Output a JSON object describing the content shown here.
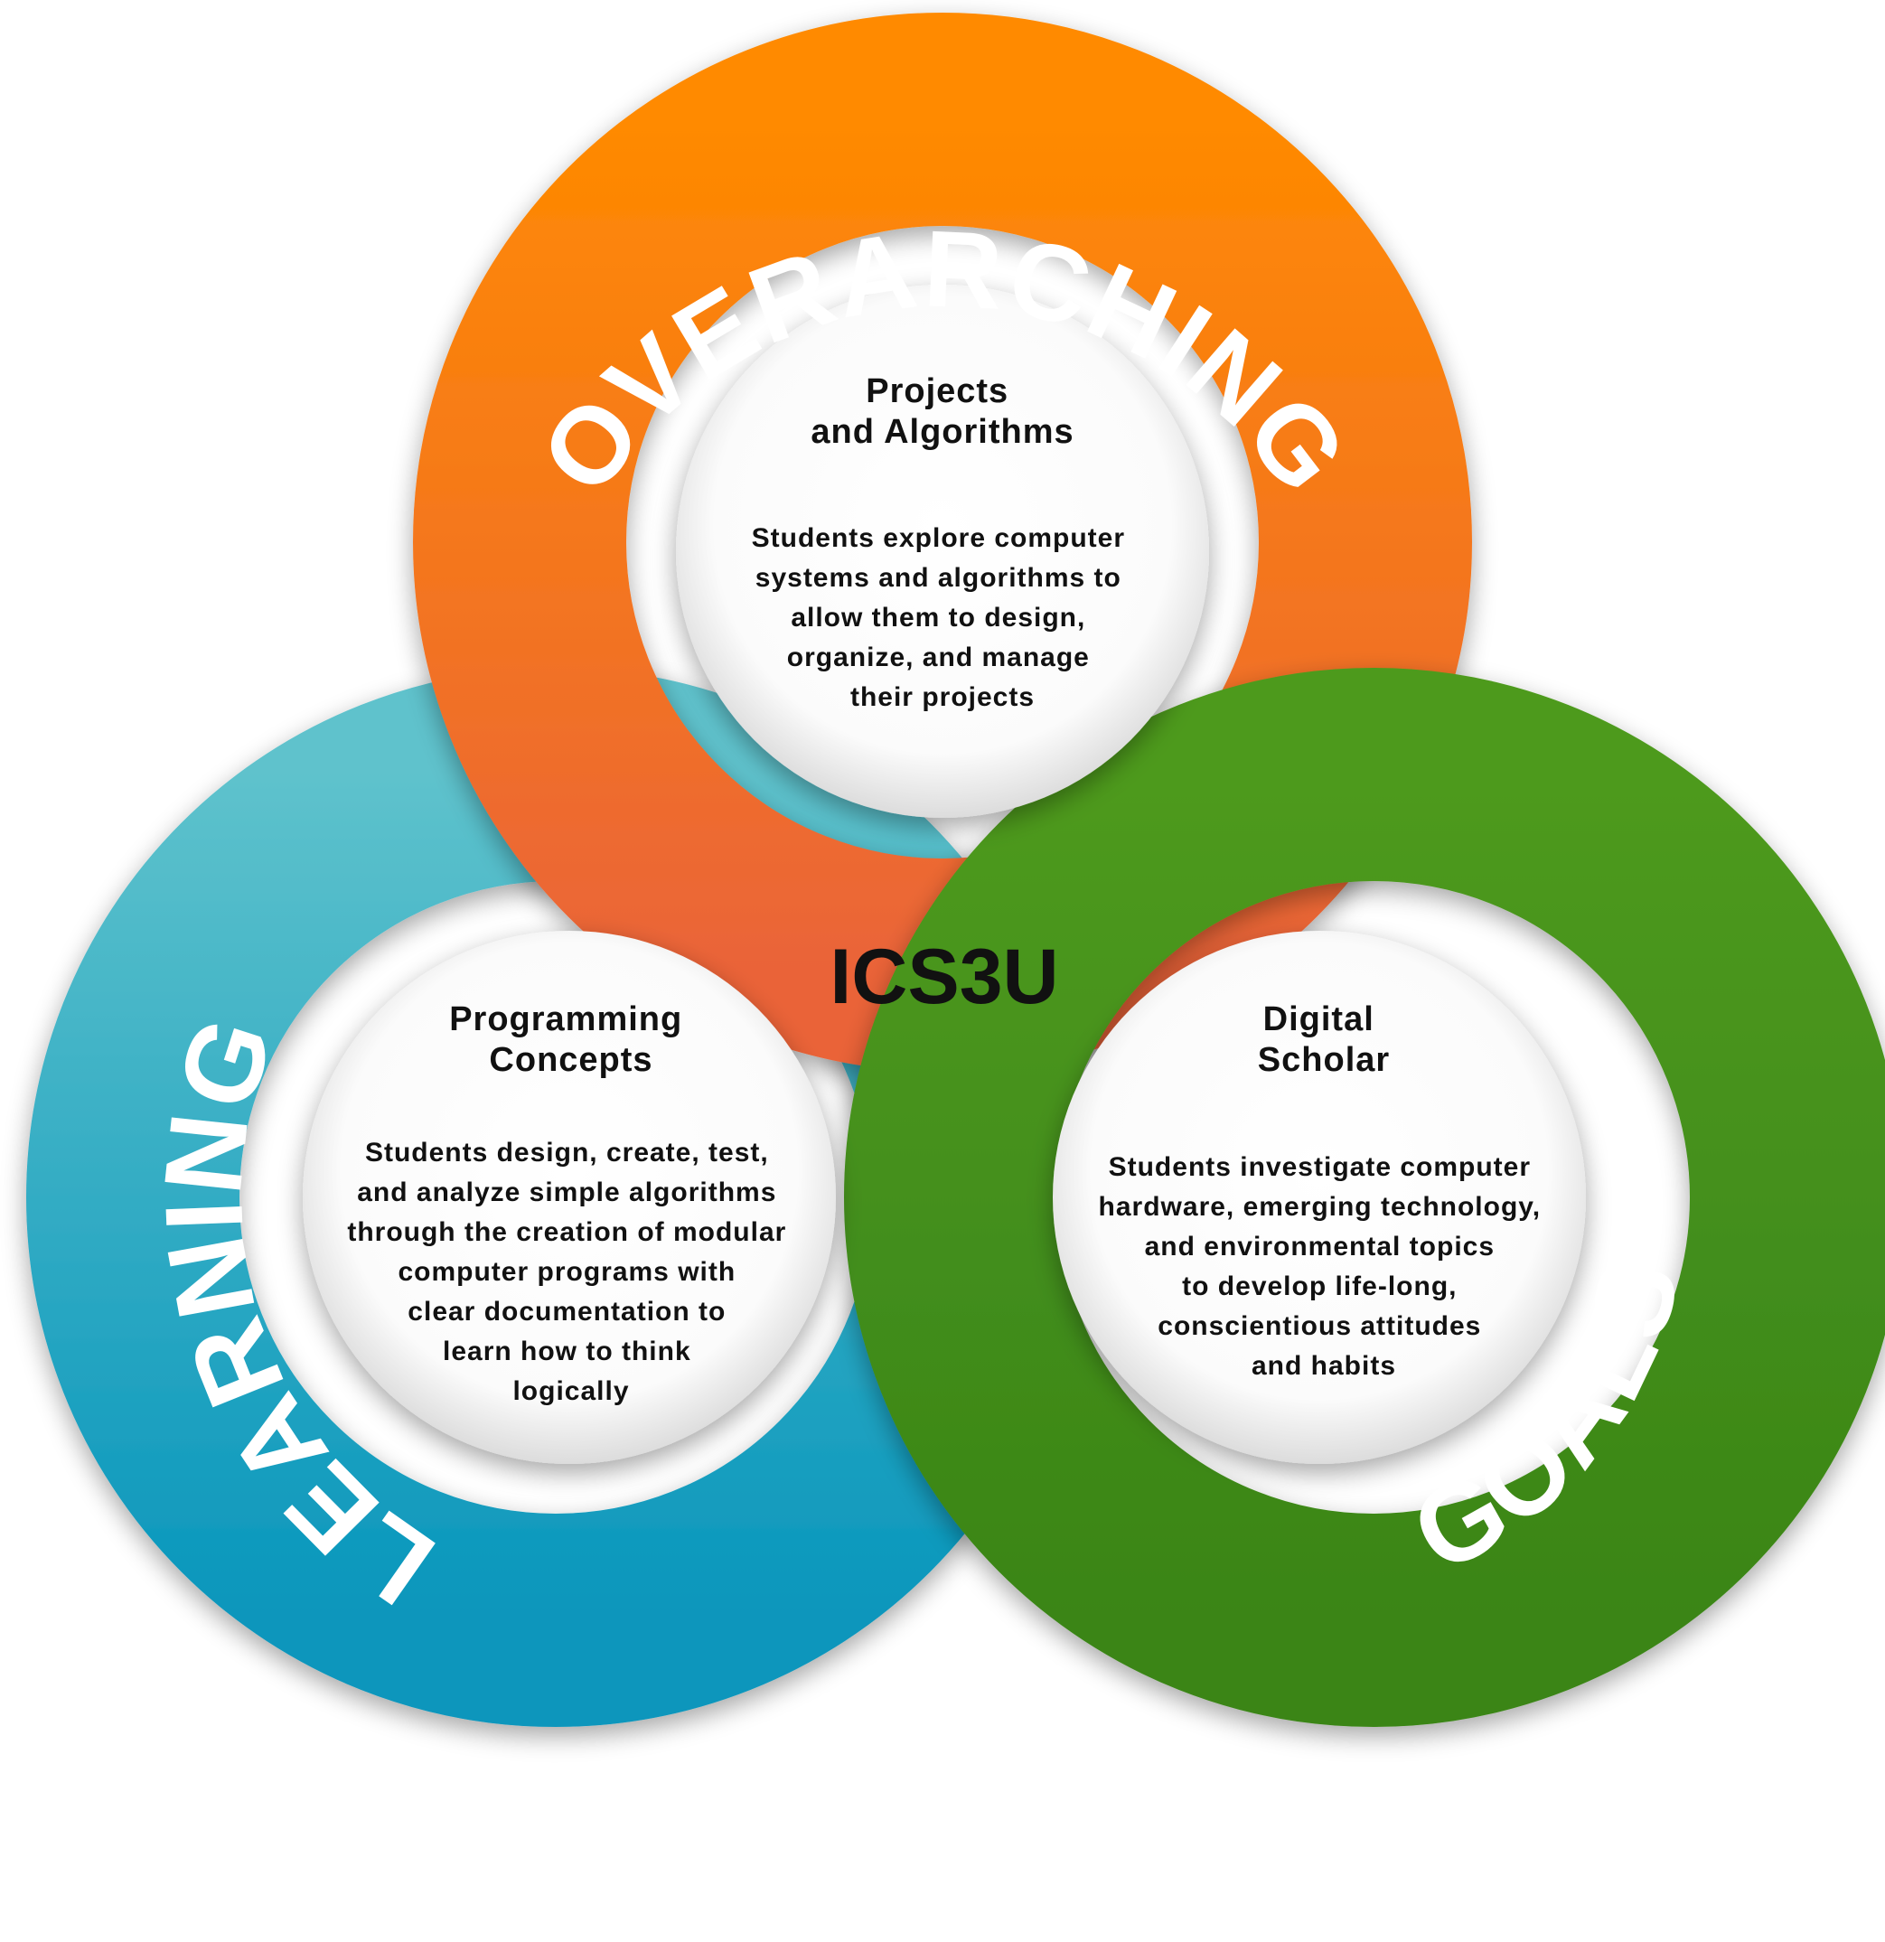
{
  "center": {
    "code": "ICS3U"
  },
  "rings": {
    "top": {
      "word": "OVERARCHING",
      "color_light": "#FF8A00",
      "color_dark": "#EA6439"
    },
    "left": {
      "word": "LEARNING",
      "color_light": "#5EC2CC",
      "color_dark": "#0896BC"
    },
    "right": {
      "word": "GOALS",
      "color_light": "#4E9A1F",
      "color_dark": "#3A8517"
    }
  },
  "cards": {
    "top": {
      "title": [
        "Projects",
        "and Algorithms"
      ],
      "body": [
        "Students explore computer",
        "systems and algorithms to",
        "allow them to design,",
        "organize, and manage",
        "their projects"
      ]
    },
    "left": {
      "title": [
        "Programming",
        "Concepts"
      ],
      "body": [
        "Students design, create, test,",
        "and analyze simple algorithms",
        "through the creation of modular",
        "computer programs with",
        "clear documentation to",
        "learn how to think",
        "logically"
      ]
    },
    "right": {
      "title": [
        "Digital",
        "Scholar"
      ],
      "body": [
        "Students investigate computer",
        "hardware, emerging technology,",
        "and environmental topics",
        "to develop life-long,",
        "conscientious attitudes",
        "and habits"
      ]
    }
  }
}
